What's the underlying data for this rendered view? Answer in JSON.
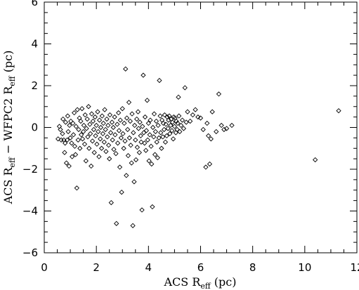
{
  "chart_data": {
    "type": "scatter",
    "marker": "diamond",
    "xlim": [
      0,
      12
    ],
    "ylim": [
      -6,
      6
    ],
    "x_ticks": [
      0,
      2,
      4,
      6,
      8,
      10,
      12
    ],
    "y_ticks": [
      -6,
      -4,
      -2,
      0,
      2,
      4,
      6
    ],
    "x_tick_labels": [
      "0",
      "2",
      "4",
      "6",
      "8",
      "10",
      "12"
    ],
    "y_tick_labels": [
      "−6",
      "−4",
      "−2",
      "0",
      "2",
      "4",
      "6"
    ],
    "xlabel": {
      "main": "ACS R",
      "sub": "eff",
      "tail": " (pc)"
    },
    "ylabel": {
      "p1": "ACS R",
      "s1": "eff",
      "p2": " − WFPC2 R",
      "s2": "eff",
      "p3": " (pc)"
    },
    "grid": false,
    "points": [
      {
        "x": 0.53,
        "y": -0.55
      },
      {
        "x": 0.58,
        "y": 0.05
      },
      {
        "x": 0.62,
        "y": -0.1
      },
      {
        "x": 0.65,
        "y": -0.6
      },
      {
        "x": 0.7,
        "y": -0.3
      },
      {
        "x": 0.72,
        "y": 0.4
      },
      {
        "x": 0.75,
        "y": -0.6
      },
      {
        "x": 0.78,
        "y": -1.2
      },
      {
        "x": 0.8,
        "y": -0.75
      },
      {
        "x": 0.82,
        "y": 0.25
      },
      {
        "x": 0.85,
        "y": -1.7
      },
      {
        "x": 0.88,
        "y": -0.6
      },
      {
        "x": 0.9,
        "y": 0.55
      },
      {
        "x": 0.92,
        "y": -0.2
      },
      {
        "x": 0.95,
        "y": -1.85
      },
      {
        "x": 0.97,
        "y": 0.1
      },
      {
        "x": 1.0,
        "y": -0.5
      },
      {
        "x": 1.02,
        "y": 0.3
      },
      {
        "x": 1.05,
        "y": -0.75
      },
      {
        "x": 1.07,
        "y": -1.4
      },
      {
        "x": 1.1,
        "y": 0.2
      },
      {
        "x": 1.12,
        "y": -0.35
      },
      {
        "x": 1.15,
        "y": 0.7
      },
      {
        "x": 1.17,
        "y": -0.9
      },
      {
        "x": 1.2,
        "y": -1.3
      },
      {
        "x": 1.22,
        "y": 0.05
      },
      {
        "x": 1.25,
        "y": -2.9
      },
      {
        "x": 1.27,
        "y": 0.85
      },
      {
        "x": 1.3,
        "y": -0.6
      },
      {
        "x": 1.32,
        "y": -0.1
      },
      {
        "x": 1.35,
        "y": 0.45
      },
      {
        "x": 1.37,
        "y": -1.0
      },
      {
        "x": 1.4,
        "y": 0.3
      },
      {
        "x": 1.42,
        "y": -0.35
      },
      {
        "x": 1.45,
        "y": 0.9
      },
      {
        "x": 1.47,
        "y": -0.55
      },
      {
        "x": 1.5,
        "y": -0.2
      },
      {
        "x": 1.52,
        "y": 0.1
      },
      {
        "x": 1.55,
        "y": -0.8
      },
      {
        "x": 1.57,
        "y": 0.6
      },
      {
        "x": 1.6,
        "y": -1.6
      },
      {
        "x": 1.62,
        "y": -0.05
      },
      {
        "x": 1.65,
        "y": 0.4
      },
      {
        "x": 1.67,
        "y": -0.45
      },
      {
        "x": 1.7,
        "y": 1.0
      },
      {
        "x": 1.72,
        "y": -1.0
      },
      {
        "x": 1.75,
        "y": 0.15
      },
      {
        "x": 1.77,
        "y": -0.3
      },
      {
        "x": 1.8,
        "y": -1.85
      },
      {
        "x": 1.82,
        "y": 0.65
      },
      {
        "x": 1.85,
        "y": -0.65
      },
      {
        "x": 1.87,
        "y": 0.3
      },
      {
        "x": 1.9,
        "y": -0.1
      },
      {
        "x": 1.92,
        "y": -1.2
      },
      {
        "x": 1.95,
        "y": 0.5
      },
      {
        "x": 1.97,
        "y": -0.4
      },
      {
        "x": 2.0,
        "y": 0.1
      },
      {
        "x": 2.02,
        "y": -0.8
      },
      {
        "x": 2.05,
        "y": 0.75
      },
      {
        "x": 2.07,
        "y": -0.2
      },
      {
        "x": 2.1,
        "y": -1.4
      },
      {
        "x": 2.12,
        "y": 0.35
      },
      {
        "x": 2.15,
        "y": -0.55
      },
      {
        "x": 2.17,
        "y": 0.0
      },
      {
        "x": 2.2,
        "y": -1.0
      },
      {
        "x": 2.22,
        "y": 0.55
      },
      {
        "x": 2.25,
        "y": -0.3
      },
      {
        "x": 2.27,
        "y": 0.2
      },
      {
        "x": 2.3,
        "y": -0.7
      },
      {
        "x": 2.32,
        "y": 0.85
      },
      {
        "x": 2.35,
        "y": -0.1
      },
      {
        "x": 2.37,
        "y": -1.15
      },
      {
        "x": 2.4,
        "y": 0.4
      },
      {
        "x": 2.42,
        "y": -0.45
      },
      {
        "x": 2.45,
        "y": 0.1
      },
      {
        "x": 2.47,
        "y": -0.85
      },
      {
        "x": 2.5,
        "y": -1.5
      },
      {
        "x": 2.52,
        "y": 0.6
      },
      {
        "x": 2.55,
        "y": -0.25
      },
      {
        "x": 2.57,
        "y": -3.6
      },
      {
        "x": 2.6,
        "y": 0.25
      },
      {
        "x": 2.62,
        "y": -0.6
      },
      {
        "x": 2.65,
        "y": 0.0
      },
      {
        "x": 2.67,
        "y": -1.05
      },
      {
        "x": 2.7,
        "y": 0.5
      },
      {
        "x": 2.72,
        "y": -0.35
      },
      {
        "x": 2.75,
        "y": -1.25
      },
      {
        "x": 2.77,
        "y": -4.6
      },
      {
        "x": 2.8,
        "y": 0.15
      },
      {
        "x": 2.82,
        "y": -0.75
      },
      {
        "x": 2.85,
        "y": 0.7
      },
      {
        "x": 2.87,
        "y": -0.15
      },
      {
        "x": 2.9,
        "y": -1.9
      },
      {
        "x": 2.92,
        "y": 0.35
      },
      {
        "x": 2.95,
        "y": -0.5
      },
      {
        "x": 2.97,
        "y": -3.1
      },
      {
        "x": 3.0,
        "y": 0.9
      },
      {
        "x": 3.02,
        "y": -0.3
      },
      {
        "x": 3.05,
        "y": -1.0
      },
      {
        "x": 3.07,
        "y": 0.2
      },
      {
        "x": 3.1,
        "y": -0.65
      },
      {
        "x": 3.12,
        "y": 2.8
      },
      {
        "x": 3.15,
        "y": -2.3
      },
      {
        "x": 3.17,
        "y": 0.45
      },
      {
        "x": 3.2,
        "y": -0.1
      },
      {
        "x": 3.22,
        "y": -1.35
      },
      {
        "x": 3.25,
        "y": 1.2
      },
      {
        "x": 3.27,
        "y": -0.5
      },
      {
        "x": 3.3,
        "y": 0.3
      },
      {
        "x": 3.32,
        "y": -0.85
      },
      {
        "x": 3.35,
        "y": -1.7
      },
      {
        "x": 3.37,
        "y": 0.65
      },
      {
        "x": 3.4,
        "y": -4.7
      },
      {
        "x": 3.42,
        "y": -0.25
      },
      {
        "x": 3.45,
        "y": -2.6
      },
      {
        "x": 3.47,
        "y": 0.1
      },
      {
        "x": 3.5,
        "y": -0.6
      },
      {
        "x": 3.52,
        "y": -1.55
      },
      {
        "x": 3.55,
        "y": 0.4
      },
      {
        "x": 3.57,
        "y": -0.95
      },
      {
        "x": 3.6,
        "y": 0.75
      },
      {
        "x": 3.62,
        "y": -0.05
      },
      {
        "x": 3.65,
        "y": -1.2
      },
      {
        "x": 3.67,
        "y": 0.25
      },
      {
        "x": 3.7,
        "y": -0.4
      },
      {
        "x": 3.72,
        "y": -0.7
      },
      {
        "x": 3.75,
        "y": -3.95
      },
      {
        "x": 3.77,
        "y": 0.05
      },
      {
        "x": 3.8,
        "y": 2.5
      },
      {
        "x": 3.82,
        "y": -0.25
      },
      {
        "x": 3.85,
        "y": -0.75
      },
      {
        "x": 3.87,
        "y": 0.5
      },
      {
        "x": 3.9,
        "y": -1.1
      },
      {
        "x": 3.92,
        "y": -0.15
      },
      {
        "x": 3.95,
        "y": 1.3
      },
      {
        "x": 3.97,
        "y": -0.6
      },
      {
        "x": 4.0,
        "y": 0.2
      },
      {
        "x": 4.02,
        "y": -1.6
      },
      {
        "x": 4.05,
        "y": -0.35
      },
      {
        "x": 4.07,
        "y": 0.35
      },
      {
        "x": 4.1,
        "y": -0.9
      },
      {
        "x": 4.12,
        "y": -1.75
      },
      {
        "x": 4.15,
        "y": -3.8
      },
      {
        "x": 4.17,
        "y": 0.0
      },
      {
        "x": 4.2,
        "y": -0.45
      },
      {
        "x": 4.22,
        "y": 0.65
      },
      {
        "x": 4.25,
        "y": -1.3
      },
      {
        "x": 4.27,
        "y": -0.2
      },
      {
        "x": 4.3,
        "y": 0.3
      },
      {
        "x": 4.32,
        "y": -0.7
      },
      {
        "x": 4.35,
        "y": -1.45
      },
      {
        "x": 4.37,
        "y": 0.1
      },
      {
        "x": 4.4,
        "y": -0.5
      },
      {
        "x": 4.42,
        "y": 2.25
      },
      {
        "x": 4.45,
        "y": 0.55
      },
      {
        "x": 4.47,
        "y": -0.25
      },
      {
        "x": 4.5,
        "y": -1.0
      },
      {
        "x": 4.52,
        "y": 0.35
      },
      {
        "x": 4.55,
        "y": -0.45
      },
      {
        "x": 4.57,
        "y": 0.2
      },
      {
        "x": 4.6,
        "y": -0.1
      },
      {
        "x": 4.62,
        "y": 0.6
      },
      {
        "x": 4.65,
        "y": -0.7
      },
      {
        "x": 4.67,
        "y": 0.15
      },
      {
        "x": 4.7,
        "y": -0.4
      },
      {
        "x": 4.72,
        "y": 0.5
      },
      {
        "x": 4.75,
        "y": -0.05
      },
      {
        "x": 4.77,
        "y": 0.35
      },
      {
        "x": 4.8,
        "y": 0.55
      },
      {
        "x": 4.82,
        "y": -0.3
      },
      {
        "x": 4.85,
        "y": 0.1
      },
      {
        "x": 4.87,
        "y": 0.4
      },
      {
        "x": 4.9,
        "y": -0.15
      },
      {
        "x": 4.92,
        "y": 0.25
      },
      {
        "x": 4.95,
        "y": -0.55
      },
      {
        "x": 4.97,
        "y": 0.5
      },
      {
        "x": 5.0,
        "y": 0.05
      },
      {
        "x": 5.02,
        "y": 0.45
      },
      {
        "x": 5.05,
        "y": -0.25
      },
      {
        "x": 5.07,
        "y": 0.3
      },
      {
        "x": 5.1,
        "y": -0.1
      },
      {
        "x": 5.12,
        "y": 0.2
      },
      {
        "x": 5.15,
        "y": 1.45
      },
      {
        "x": 5.17,
        "y": 0.55
      },
      {
        "x": 5.2,
        "y": -0.2
      },
      {
        "x": 5.25,
        "y": 0.1
      },
      {
        "x": 5.3,
        "y": 0.35
      },
      {
        "x": 5.35,
        "y": -0.05
      },
      {
        "x": 5.4,
        "y": 1.9
      },
      {
        "x": 5.45,
        "y": 0.25
      },
      {
        "x": 5.5,
        "y": 0.75
      },
      {
        "x": 5.6,
        "y": 0.3
      },
      {
        "x": 5.7,
        "y": 0.6
      },
      {
        "x": 5.8,
        "y": 0.85
      },
      {
        "x": 5.9,
        "y": 0.5
      },
      {
        "x": 6.0,
        "y": 0.45
      },
      {
        "x": 6.1,
        "y": -0.1
      },
      {
        "x": 6.2,
        "y": -1.9
      },
      {
        "x": 6.25,
        "y": 0.2
      },
      {
        "x": 6.3,
        "y": -0.4
      },
      {
        "x": 6.35,
        "y": -1.75
      },
      {
        "x": 6.4,
        "y": -0.55
      },
      {
        "x": 6.45,
        "y": 0.75
      },
      {
        "x": 6.6,
        "y": -0.2
      },
      {
        "x": 6.7,
        "y": 1.6
      },
      {
        "x": 6.8,
        "y": 0.1
      },
      {
        "x": 6.9,
        "y": -0.1
      },
      {
        "x": 7.0,
        "y": -0.05
      },
      {
        "x": 7.2,
        "y": 0.1
      },
      {
        "x": 10.4,
        "y": -1.55
      },
      {
        "x": 11.3,
        "y": 0.8
      }
    ]
  }
}
